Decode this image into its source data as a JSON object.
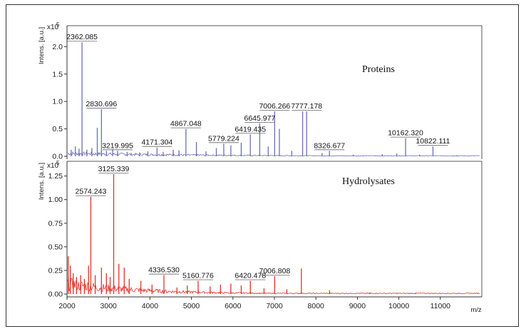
{
  "chart_data": [
    {
      "type": "line",
      "title": "Proteins",
      "ylabel": "Intens. [a.u.]",
      "scale_label": "x10",
      "scale_exp": "5",
      "xlabel": "",
      "xlim": [
        2000,
        12000
      ],
      "ylim": [
        0,
        2.2
      ],
      "yticks": [
        0.0,
        0.5,
        1.0,
        1.5,
        2.0
      ],
      "ytick_labels": [
        "0.0",
        "0.5",
        "1.0",
        "1.5",
        "2.0"
      ],
      "color": "#6b6fb8",
      "peaks": [
        {
          "x": 2100,
          "y": 0.12
        },
        {
          "x": 2200,
          "y": 0.18
        },
        {
          "x": 2290,
          "y": 0.14
        },
        {
          "x": 2362.085,
          "y": 2.08,
          "label": "2362.085"
        },
        {
          "x": 2480,
          "y": 0.12
        },
        {
          "x": 2600,
          "y": 0.15
        },
        {
          "x": 2730,
          "y": 0.52
        },
        {
          "x": 2830.696,
          "y": 0.86,
          "label": "2830.696"
        },
        {
          "x": 2950,
          "y": 0.1
        },
        {
          "x": 3100,
          "y": 0.13
        },
        {
          "x": 3219.995,
          "y": 0.1,
          "label": "3219.995"
        },
        {
          "x": 3450,
          "y": 0.08
        },
        {
          "x": 3750,
          "y": 0.07
        },
        {
          "x": 3950,
          "y": 0.09
        },
        {
          "x": 4171.304,
          "y": 0.16,
          "label": "4171.304"
        },
        {
          "x": 4320,
          "y": 0.08
        },
        {
          "x": 4560,
          "y": 0.12
        },
        {
          "x": 4700,
          "y": 0.11
        },
        {
          "x": 4867.048,
          "y": 0.5,
          "label": "4867.048"
        },
        {
          "x": 5120,
          "y": 0.26
        },
        {
          "x": 5350,
          "y": 0.09
        },
        {
          "x": 5600,
          "y": 0.15
        },
        {
          "x": 5779.224,
          "y": 0.23,
          "label": "5779.224"
        },
        {
          "x": 5950,
          "y": 0.2
        },
        {
          "x": 6200,
          "y": 0.25
        },
        {
          "x": 6419.435,
          "y": 0.4,
          "label": "6419.435"
        },
        {
          "x": 6645.977,
          "y": 0.6,
          "label": "6645.977"
        },
        {
          "x": 6850,
          "y": 0.18
        },
        {
          "x": 7006.266,
          "y": 0.82,
          "label": "7006.266"
        },
        {
          "x": 7120,
          "y": 0.5
        },
        {
          "x": 7420,
          "y": 0.1
        },
        {
          "x": 7680,
          "y": 0.82
        },
        {
          "x": 7777.178,
          "y": 0.82,
          "label": "7777.178"
        },
        {
          "x": 8150,
          "y": 0.06
        },
        {
          "x": 8326.677,
          "y": 0.1,
          "label": "8326.677"
        },
        {
          "x": 8900,
          "y": 0.03
        },
        {
          "x": 9600,
          "y": 0.04
        },
        {
          "x": 9950,
          "y": 0.05
        },
        {
          "x": 10162.32,
          "y": 0.33,
          "label": "10162.320"
        },
        {
          "x": 10500,
          "y": 0.03
        },
        {
          "x": 10822.111,
          "y": 0.18,
          "label": "10822.111"
        },
        {
          "x": 11400,
          "y": 0.02
        }
      ]
    },
    {
      "type": "line",
      "title": "Hydrolysates",
      "ylabel": "Intens. [a.u.]",
      "scale_label": "x10",
      "scale_exp": "5",
      "xlabel": "m/z",
      "xlim": [
        2000,
        12000
      ],
      "ylim": [
        0,
        1.3
      ],
      "yticks": [
        0.0,
        0.25,
        0.5,
        0.75,
        1.0,
        1.25
      ],
      "ytick_labels": [
        "0.00",
        "0.25",
        "0.50",
        "0.75",
        "1.00",
        "1.25"
      ],
      "xticks": [
        2000,
        3000,
        4000,
        5000,
        6000,
        7000,
        8000,
        9000,
        10000,
        11000
      ],
      "xtick_labels": [
        "2000",
        "3000",
        "4000",
        "5000",
        "6000",
        "7000",
        "8000",
        "9000",
        "10000",
        "11000"
      ],
      "color": "#e8302a",
      "peaks": [
        {
          "x": 2030,
          "y": 0.4
        },
        {
          "x": 2080,
          "y": 0.3
        },
        {
          "x": 2150,
          "y": 0.22
        },
        {
          "x": 2230,
          "y": 0.18
        },
        {
          "x": 2330,
          "y": 0.2
        },
        {
          "x": 2420,
          "y": 0.16
        },
        {
          "x": 2520,
          "y": 0.3
        },
        {
          "x": 2574.243,
          "y": 1.03,
          "label": "2574.243"
        },
        {
          "x": 2680,
          "y": 0.2
        },
        {
          "x": 2830,
          "y": 0.28
        },
        {
          "x": 2950,
          "y": 0.22
        },
        {
          "x": 3040,
          "y": 0.18
        },
        {
          "x": 3125.339,
          "y": 1.27,
          "label": "3125.339"
        },
        {
          "x": 3250,
          "y": 0.32
        },
        {
          "x": 3380,
          "y": 0.28
        },
        {
          "x": 3500,
          "y": 0.16
        },
        {
          "x": 3780,
          "y": 0.14
        },
        {
          "x": 4050,
          "y": 0.1
        },
        {
          "x": 4336.53,
          "y": 0.2,
          "label": "4336.530"
        },
        {
          "x": 4650,
          "y": 0.07
        },
        {
          "x": 4900,
          "y": 0.09
        },
        {
          "x": 5160.776,
          "y": 0.14,
          "label": "5160.776"
        },
        {
          "x": 5450,
          "y": 0.08
        },
        {
          "x": 5700,
          "y": 0.1
        },
        {
          "x": 5950,
          "y": 0.11
        },
        {
          "x": 6200,
          "y": 0.09
        },
        {
          "x": 6420.478,
          "y": 0.14,
          "label": "6420.478"
        },
        {
          "x": 6750,
          "y": 0.06
        },
        {
          "x": 7006.808,
          "y": 0.19,
          "label": "7006.808"
        },
        {
          "x": 7300,
          "y": 0.05
        },
        {
          "x": 7650,
          "y": 0.27
        },
        {
          "x": 8330,
          "y": 0.04
        },
        {
          "x": 9300,
          "y": 0.015
        },
        {
          "x": 10400,
          "y": 0.012
        }
      ]
    }
  ]
}
